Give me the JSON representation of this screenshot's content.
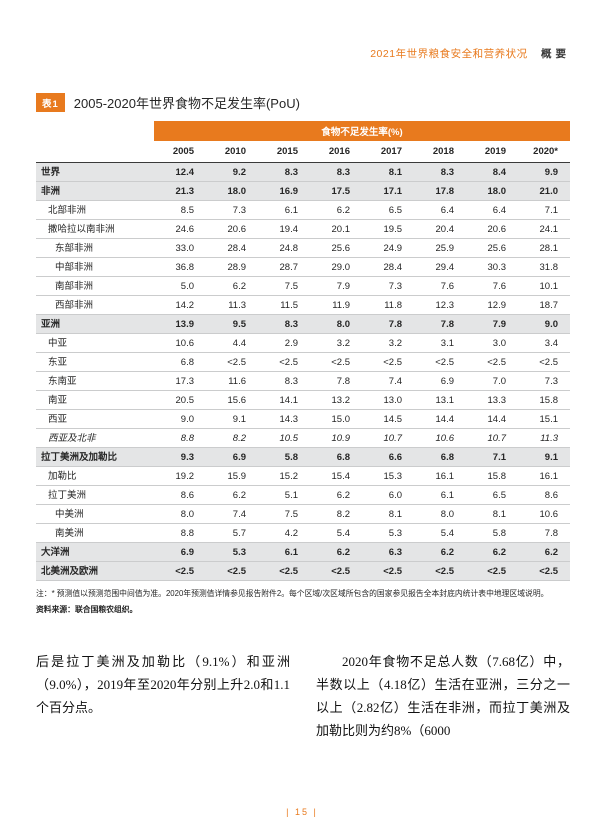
{
  "header": {
    "report_title": "2021年世界粮食安全和营养状况",
    "section": "概要"
  },
  "table": {
    "tag": "表1",
    "title": "2005-2020年世界食物不足发生率(PoU)",
    "band": "食物不足发生率(%)",
    "columns": [
      "2005",
      "2010",
      "2015",
      "2016",
      "2017",
      "2018",
      "2019",
      "2020*"
    ],
    "rows": [
      {
        "label": "世界",
        "bold": true,
        "shaded": true,
        "indent": 0,
        "values": [
          "12.4",
          "9.2",
          "8.3",
          "8.3",
          "8.1",
          "8.3",
          "8.4",
          "9.9"
        ]
      },
      {
        "label": "非洲",
        "bold": true,
        "shaded": true,
        "indent": 0,
        "values": [
          "21.3",
          "18.0",
          "16.9",
          "17.5",
          "17.1",
          "17.8",
          "18.0",
          "21.0"
        ]
      },
      {
        "label": "北部非洲",
        "indent": 1,
        "values": [
          "8.5",
          "7.3",
          "6.1",
          "6.2",
          "6.5",
          "6.4",
          "6.4",
          "7.1"
        ]
      },
      {
        "label": "撒哈拉以南非洲",
        "indent": 1,
        "values": [
          "24.6",
          "20.6",
          "19.4",
          "20.1",
          "19.5",
          "20.4",
          "20.6",
          "24.1"
        ]
      },
      {
        "label": "东部非洲",
        "indent": 2,
        "values": [
          "33.0",
          "28.4",
          "24.8",
          "25.6",
          "24.9",
          "25.9",
          "25.6",
          "28.1"
        ]
      },
      {
        "label": "中部非洲",
        "indent": 2,
        "values": [
          "36.8",
          "28.9",
          "28.7",
          "29.0",
          "28.4",
          "29.4",
          "30.3",
          "31.8"
        ]
      },
      {
        "label": "南部非洲",
        "indent": 2,
        "values": [
          "5.0",
          "6.2",
          "7.5",
          "7.9",
          "7.3",
          "7.6",
          "7.6",
          "10.1"
        ]
      },
      {
        "label": "西部非洲",
        "indent": 2,
        "values": [
          "14.2",
          "11.3",
          "11.5",
          "11.9",
          "11.8",
          "12.3",
          "12.9",
          "18.7"
        ]
      },
      {
        "label": "亚洲",
        "bold": true,
        "shaded": true,
        "indent": 0,
        "values": [
          "13.9",
          "9.5",
          "8.3",
          "8.0",
          "7.8",
          "7.8",
          "7.9",
          "9.0"
        ]
      },
      {
        "label": "中亚",
        "indent": 1,
        "values": [
          "10.6",
          "4.4",
          "2.9",
          "3.2",
          "3.2",
          "3.1",
          "3.0",
          "3.4"
        ]
      },
      {
        "label": "东亚",
        "indent": 1,
        "values": [
          "6.8",
          "<2.5",
          "<2.5",
          "<2.5",
          "<2.5",
          "<2.5",
          "<2.5",
          "<2.5"
        ]
      },
      {
        "label": "东南亚",
        "indent": 1,
        "values": [
          "17.3",
          "11.6",
          "8.3",
          "7.8",
          "7.4",
          "6.9",
          "7.0",
          "7.3"
        ]
      },
      {
        "label": "南亚",
        "indent": 1,
        "values": [
          "20.5",
          "15.6",
          "14.1",
          "13.2",
          "13.0",
          "13.1",
          "13.3",
          "15.8"
        ]
      },
      {
        "label": "西亚",
        "indent": 1,
        "values": [
          "9.0",
          "9.1",
          "14.3",
          "15.0",
          "14.5",
          "14.4",
          "14.4",
          "15.1"
        ]
      },
      {
        "label": "西亚及北非",
        "indent": 1,
        "italic": true,
        "values": [
          "8.8",
          "8.2",
          "10.5",
          "10.9",
          "10.7",
          "10.6",
          "10.7",
          "11.3"
        ]
      },
      {
        "label": "拉丁美洲及加勒比",
        "bold": true,
        "shaded": true,
        "indent": 0,
        "values": [
          "9.3",
          "6.9",
          "5.8",
          "6.8",
          "6.6",
          "6.8",
          "7.1",
          "9.1"
        ]
      },
      {
        "label": "加勒比",
        "indent": 1,
        "values": [
          "19.2",
          "15.9",
          "15.2",
          "15.4",
          "15.3",
          "16.1",
          "15.8",
          "16.1"
        ]
      },
      {
        "label": "拉丁美洲",
        "indent": 1,
        "values": [
          "8.6",
          "6.2",
          "5.1",
          "6.2",
          "6.0",
          "6.1",
          "6.5",
          "8.6"
        ]
      },
      {
        "label": "中美洲",
        "indent": 2,
        "values": [
          "8.0",
          "7.4",
          "7.5",
          "8.2",
          "8.1",
          "8.0",
          "8.1",
          "10.6"
        ]
      },
      {
        "label": "南美洲",
        "indent": 2,
        "values": [
          "8.8",
          "5.7",
          "4.2",
          "5.4",
          "5.3",
          "5.4",
          "5.8",
          "7.8"
        ]
      },
      {
        "label": "大洋洲",
        "bold": true,
        "shaded": true,
        "indent": 0,
        "values": [
          "6.9",
          "5.3",
          "6.1",
          "6.2",
          "6.3",
          "6.2",
          "6.2",
          "6.2"
        ]
      },
      {
        "label": "北美洲及欧洲",
        "bold": true,
        "shaded": true,
        "indent": 0,
        "values": [
          "<2.5",
          "<2.5",
          "<2.5",
          "<2.5",
          "<2.5",
          "<2.5",
          "<2.5",
          "<2.5"
        ]
      }
    ],
    "note": "注：* 预测值以预测范围中间值为准。2020年预测值详情参见报告附件2。每个区域/次区域所包含的国家参见报告全本封底内统计表中地理区域说明。",
    "source": "资料来源：联合国粮农组织。"
  },
  "body": {
    "left_paragraph": "后是拉丁美洲及加勒比（9.1%）和亚洲（9.0%），2019年至2020年分别上升2.0和1.1个百分点。",
    "right_paragraph": "2020年食物不足总人数（7.68亿）中，半数以上（4.18亿）生活在亚洲，三分之一以上（2.82亿）生活在非洲，而拉丁美洲及加勒比则为约8%（6000"
  },
  "footer": {
    "page_number": "| 15 |"
  },
  "colors": {
    "accent": "#E87A1E",
    "shaded_row": "#E4E5E6",
    "row_border": "#CBCCCD",
    "text": "#262626"
  }
}
